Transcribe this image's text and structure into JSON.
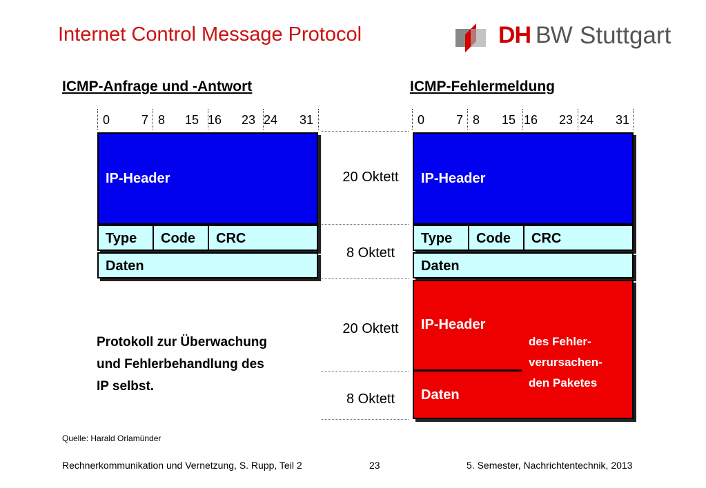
{
  "title": "Internet Control Message Protocol",
  "logo": {
    "dh": "DH",
    "bw": "BW",
    "city": "Stuttgart"
  },
  "left": {
    "title": "ICMP-Anfrage und -Antwort",
    "bits": [
      "0",
      "7",
      "8",
      "15",
      "16",
      "23",
      "24",
      "31"
    ],
    "ip_header": "IP-Header",
    "type": "Type",
    "code": "Code",
    "crc": "CRC",
    "daten": "Daten"
  },
  "right": {
    "title": "ICMP-Fehlermeldung",
    "bits": [
      "0",
      "7",
      "8",
      "15",
      "16",
      "23",
      "24",
      "31"
    ],
    "ip_header": "IP-Header",
    "type": "Type",
    "code": "Code",
    "crc": "CRC",
    "daten": "Daten",
    "err_ip_header": "IP-Header",
    "err_daten": "Daten",
    "err_note": [
      "des Fehler-",
      "verursachen-",
      "den Paketes"
    ]
  },
  "oktett": [
    "20 Oktett",
    "8 Oktett",
    "20 Oktett",
    "8 Oktett"
  ],
  "description": [
    "Protokoll zur Überwachung",
    "und Fehlerbehandlung des",
    "IP selbst."
  ],
  "source": "Quelle: Harald Orlamünder",
  "footer": {
    "left": "Rechnerkommunikation und Vernetzung, S. Rupp, Teil 2",
    "page": "23",
    "right": "5. Semester, Nachrichtentechnik, 2013"
  }
}
